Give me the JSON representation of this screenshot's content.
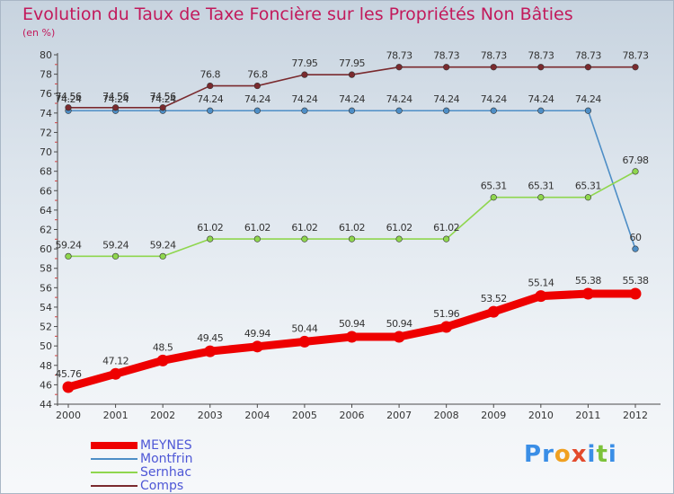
{
  "title": "Evolution du Taux de Taxe Foncière sur les Propriétés Non Bâties",
  "subtitle": "(en %)",
  "logo": {
    "letters": [
      "P",
      "r",
      "o",
      "x",
      "i",
      "t",
      "i"
    ],
    "colors": [
      "#3a8ee6",
      "#3a8ee6",
      "#f0a020",
      "#e34a2c",
      "#3a8ee6",
      "#7cc23a",
      "#3a8ee6"
    ]
  },
  "chart_data": {
    "type": "line",
    "title": "Evolution du Taux de Taxe Foncière sur les Propriétés Non Bâties",
    "ylabel": "(en %)",
    "xlabel": "",
    "ylim": [
      44,
      80
    ],
    "yticks": [
      44,
      46,
      48,
      50,
      52,
      54,
      56,
      58,
      60,
      62,
      64,
      66,
      68,
      70,
      72,
      74,
      76,
      78,
      80
    ],
    "x": [
      "2000",
      "2001",
      "2002",
      "2003",
      "2004",
      "2005",
      "2006",
      "2007",
      "2008",
      "2009",
      "2010",
      "2011",
      "2012"
    ],
    "grid": false,
    "legend_position": "bottom-left",
    "series": [
      {
        "name": "MEYNES",
        "color": "#ee0000",
        "emphasis": true,
        "values": [
          45.76,
          47.12,
          48.5,
          49.45,
          49.94,
          50.44,
          50.94,
          50.94,
          51.96,
          53.52,
          55.14,
          55.38,
          55.38
        ],
        "labels": [
          "45.76",
          "47.12",
          "48.5",
          "49.45",
          "49.94",
          "50.44",
          "50.94",
          "50.94",
          "51.96",
          "53.52",
          "55.14",
          "55.38",
          "55.38"
        ]
      },
      {
        "name": "Montfrin",
        "color": "#4e8ec6",
        "values": [
          74.24,
          74.24,
          74.24,
          74.24,
          74.24,
          74.24,
          74.24,
          74.24,
          74.24,
          74.24,
          74.24,
          74.24,
          60
        ],
        "labels": [
          "74.24",
          "74.24",
          "74.24",
          "74.24",
          "74.24",
          "74.24",
          "74.24",
          "74.24",
          "74.24",
          "74.24",
          "74.24",
          "74.24",
          "60"
        ]
      },
      {
        "name": "Sernhac",
        "color": "#8fd64e",
        "values": [
          59.24,
          59.24,
          59.24,
          61.02,
          61.02,
          61.02,
          61.02,
          61.02,
          61.02,
          65.31,
          65.31,
          65.31,
          67.98
        ],
        "labels": [
          "59.24",
          "59.24",
          "59.24",
          "61.02",
          "61.02",
          "61.02",
          "61.02",
          "61.02",
          "61.02",
          "65.31",
          "65.31",
          "65.31",
          "67.98"
        ]
      },
      {
        "name": "Comps",
        "color": "#7a2a2e",
        "values": [
          74.56,
          74.56,
          74.56,
          76.8,
          76.8,
          77.95,
          77.95,
          78.73,
          78.73,
          78.73,
          78.73,
          78.73,
          78.73
        ],
        "labels": [
          "74.56",
          "74.56",
          "74.56",
          "76.8",
          "76.8",
          "77.95",
          "77.95",
          "78.73",
          "78.73",
          "78.73",
          "78.73",
          "78.73",
          "78.73"
        ]
      }
    ]
  }
}
